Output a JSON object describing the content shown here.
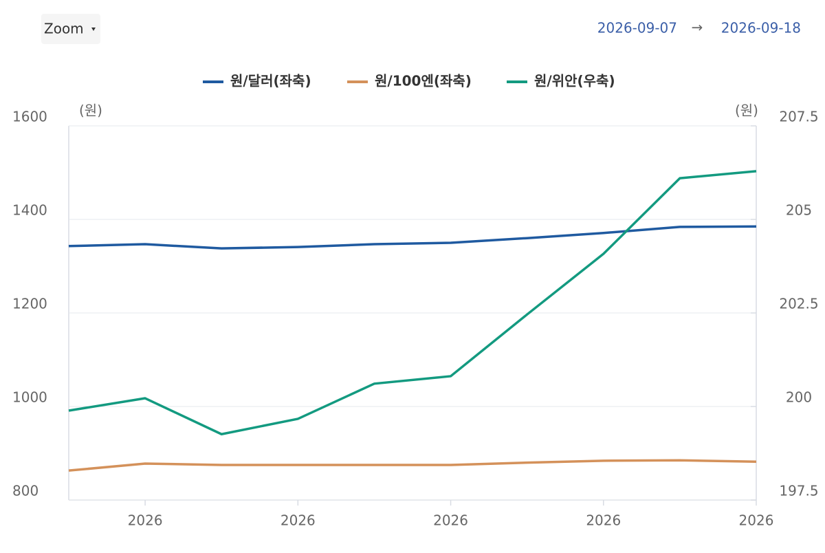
{
  "toolbar": {
    "zoom": "Zoom",
    "from": "2026-09-07",
    "arrow": "→",
    "to": "2026-09-18"
  },
  "chart_data": {
    "type": "line",
    "y_unit": "(원)",
    "y2_unit": "(원)",
    "categories": [
      null,
      "2026",
      null,
      "2026",
      null,
      "2026",
      null,
      "2026",
      null,
      "2026"
    ],
    "series": [
      {
        "name": "원/달러(좌축)",
        "color": "#1f5aa0",
        "values": [
          1343,
          1347,
          1338,
          1341,
          1347,
          1350,
          1360,
          1371,
          1384,
          1385
        ]
      },
      {
        "name": "원/100엔(좌축)",
        "color": "#d4915a",
        "values": [
          863,
          878,
          875,
          875,
          875,
          875,
          880,
          884,
          885,
          882
        ]
      },
      {
        "name": "원/위안(우축)",
        "color": "#139a80",
        "axis": "y2",
        "values": [
          199.89,
          200.22,
          199.26,
          199.67,
          200.61,
          200.81,
          202.46,
          204.08,
          206.1,
          206.29
        ]
      }
    ],
    "ylim": [
      800,
      1600
    ],
    "yticks": [
      800,
      1000,
      1200,
      1400,
      1600
    ],
    "y2lim": [
      197.5,
      207.5
    ],
    "y2ticks": [
      197.5,
      200,
      202.5,
      205,
      207.5
    ],
    "grid": true,
    "legend": "top"
  }
}
